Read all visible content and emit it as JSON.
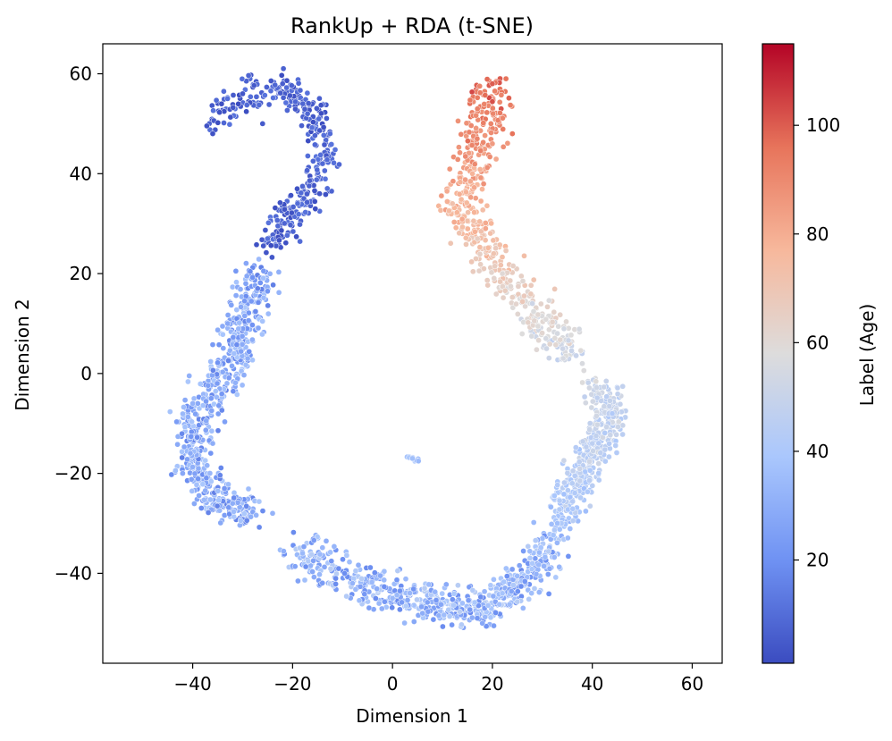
{
  "chart_data": {
    "type": "scatter",
    "title": "RankUp + RDA (t-SNE)",
    "xlabel": "Dimension 1",
    "ylabel": "Dimension 2",
    "xlim": [
      -58,
      66
    ],
    "ylim": [
      -58,
      66
    ],
    "xticks": [
      -40,
      -20,
      0,
      20,
      40,
      60
    ],
    "yticks": [
      -40,
      -20,
      0,
      20,
      40,
      60
    ],
    "xtick_labels": [
      "−40",
      "−20",
      "0",
      "20",
      "40",
      "60"
    ],
    "ytick_labels": [
      "−40",
      "−20",
      "0",
      "20",
      "40",
      "60"
    ],
    "grid": false,
    "colormap": "coolwarm",
    "colormap_stops": [
      "#3b4cc0",
      "#6f92f3",
      "#aac7fd",
      "#dddcdc",
      "#f7b89c",
      "#e7745b",
      "#b40426"
    ],
    "colorbar": {
      "label": "Label (Age)",
      "range": [
        1,
        115
      ],
      "ticks": [
        20,
        40,
        60,
        80,
        100
      ],
      "tick_labels": [
        "20",
        "40",
        "60",
        "80",
        "100"
      ]
    },
    "marker_edge_color": "#ffffff",
    "cluster_summary": [
      {
        "region": "upper-left hook",
        "x_range": [
          -37,
          -12
        ],
        "y_range": [
          23,
          60
        ],
        "age_range": [
          1,
          12
        ]
      },
      {
        "region": "left arm",
        "x_range": [
          -43,
          -22
        ],
        "y_range": [
          -35,
          20
        ],
        "age_range": [
          15,
          40
        ]
      },
      {
        "region": "bottom arc",
        "x_range": [
          -20,
          35
        ],
        "y_range": [
          -52,
          -30
        ],
        "age_range": [
          18,
          45
        ]
      },
      {
        "region": "right arm",
        "x_range": [
          28,
          47
        ],
        "y_range": [
          -40,
          -5
        ],
        "age_range": [
          20,
          60
        ]
      },
      {
        "region": "upper-right arm",
        "x_range": [
          10,
          38
        ],
        "y_range": [
          -5,
          60
        ],
        "age_range": [
          45,
          105
        ]
      },
      {
        "region": "small center cluster",
        "x_range": [
          2,
          6
        ],
        "y_range": [
          -18,
          -16
        ],
        "age_range": [
          30,
          40
        ]
      }
    ],
    "points": [
      {
        "x": -30,
        "y": 56,
        "age": 4
      },
      {
        "x": -22,
        "y": 58,
        "age": 6
      },
      {
        "x": -26,
        "y": 50,
        "age": 5
      },
      {
        "x": -36,
        "y": 48,
        "age": 3
      },
      {
        "x": -17,
        "y": 52,
        "age": 8
      },
      {
        "x": -14,
        "y": 42,
        "age": 9
      },
      {
        "x": -19,
        "y": 34,
        "age": 10
      },
      {
        "x": -25,
        "y": 27,
        "age": 11
      },
      {
        "x": -27,
        "y": 17,
        "age": 16
      },
      {
        "x": -33,
        "y": 10,
        "age": 28
      },
      {
        "x": -29,
        "y": 3,
        "age": 30
      },
      {
        "x": -40,
        "y": -6,
        "age": 32
      },
      {
        "x": -36,
        "y": -14,
        "age": 30
      },
      {
        "x": -42,
        "y": -20,
        "age": 28
      },
      {
        "x": -32,
        "y": -26,
        "age": 30
      },
      {
        "x": -24,
        "y": -28,
        "age": 32
      },
      {
        "x": -18,
        "y": -36,
        "age": 34
      },
      {
        "x": -8,
        "y": -42,
        "age": 32
      },
      {
        "x": 0,
        "y": -45,
        "age": 34
      },
      {
        "x": 6,
        "y": -48,
        "age": 30
      },
      {
        "x": 14,
        "y": -46,
        "age": 36
      },
      {
        "x": 18,
        "y": -50,
        "age": 28
      },
      {
        "x": 22,
        "y": -44,
        "age": 38
      },
      {
        "x": 28,
        "y": -38,
        "age": 40
      },
      {
        "x": 33,
        "y": -30,
        "age": 36
      },
      {
        "x": 36,
        "y": -22,
        "age": 44
      },
      {
        "x": 40,
        "y": -14,
        "age": 46
      },
      {
        "x": 44,
        "y": -8,
        "age": 42
      },
      {
        "x": 38,
        "y": 2,
        "age": 56
      },
      {
        "x": 33,
        "y": 8,
        "age": 55
      },
      {
        "x": 28,
        "y": 14,
        "age": 52
      },
      {
        "x": 22,
        "y": 20,
        "age": 60
      },
      {
        "x": 17,
        "y": 27,
        "age": 66
      },
      {
        "x": 12,
        "y": 34,
        "age": 72
      },
      {
        "x": 16,
        "y": 40,
        "age": 78
      },
      {
        "x": 20,
        "y": 46,
        "age": 85
      },
      {
        "x": 17,
        "y": 53,
        "age": 92
      },
      {
        "x": 20,
        "y": 58,
        "age": 100
      },
      {
        "x": 24,
        "y": 48,
        "age": 96
      },
      {
        "x": 4,
        "y": -17,
        "age": 36
      }
    ]
  }
}
